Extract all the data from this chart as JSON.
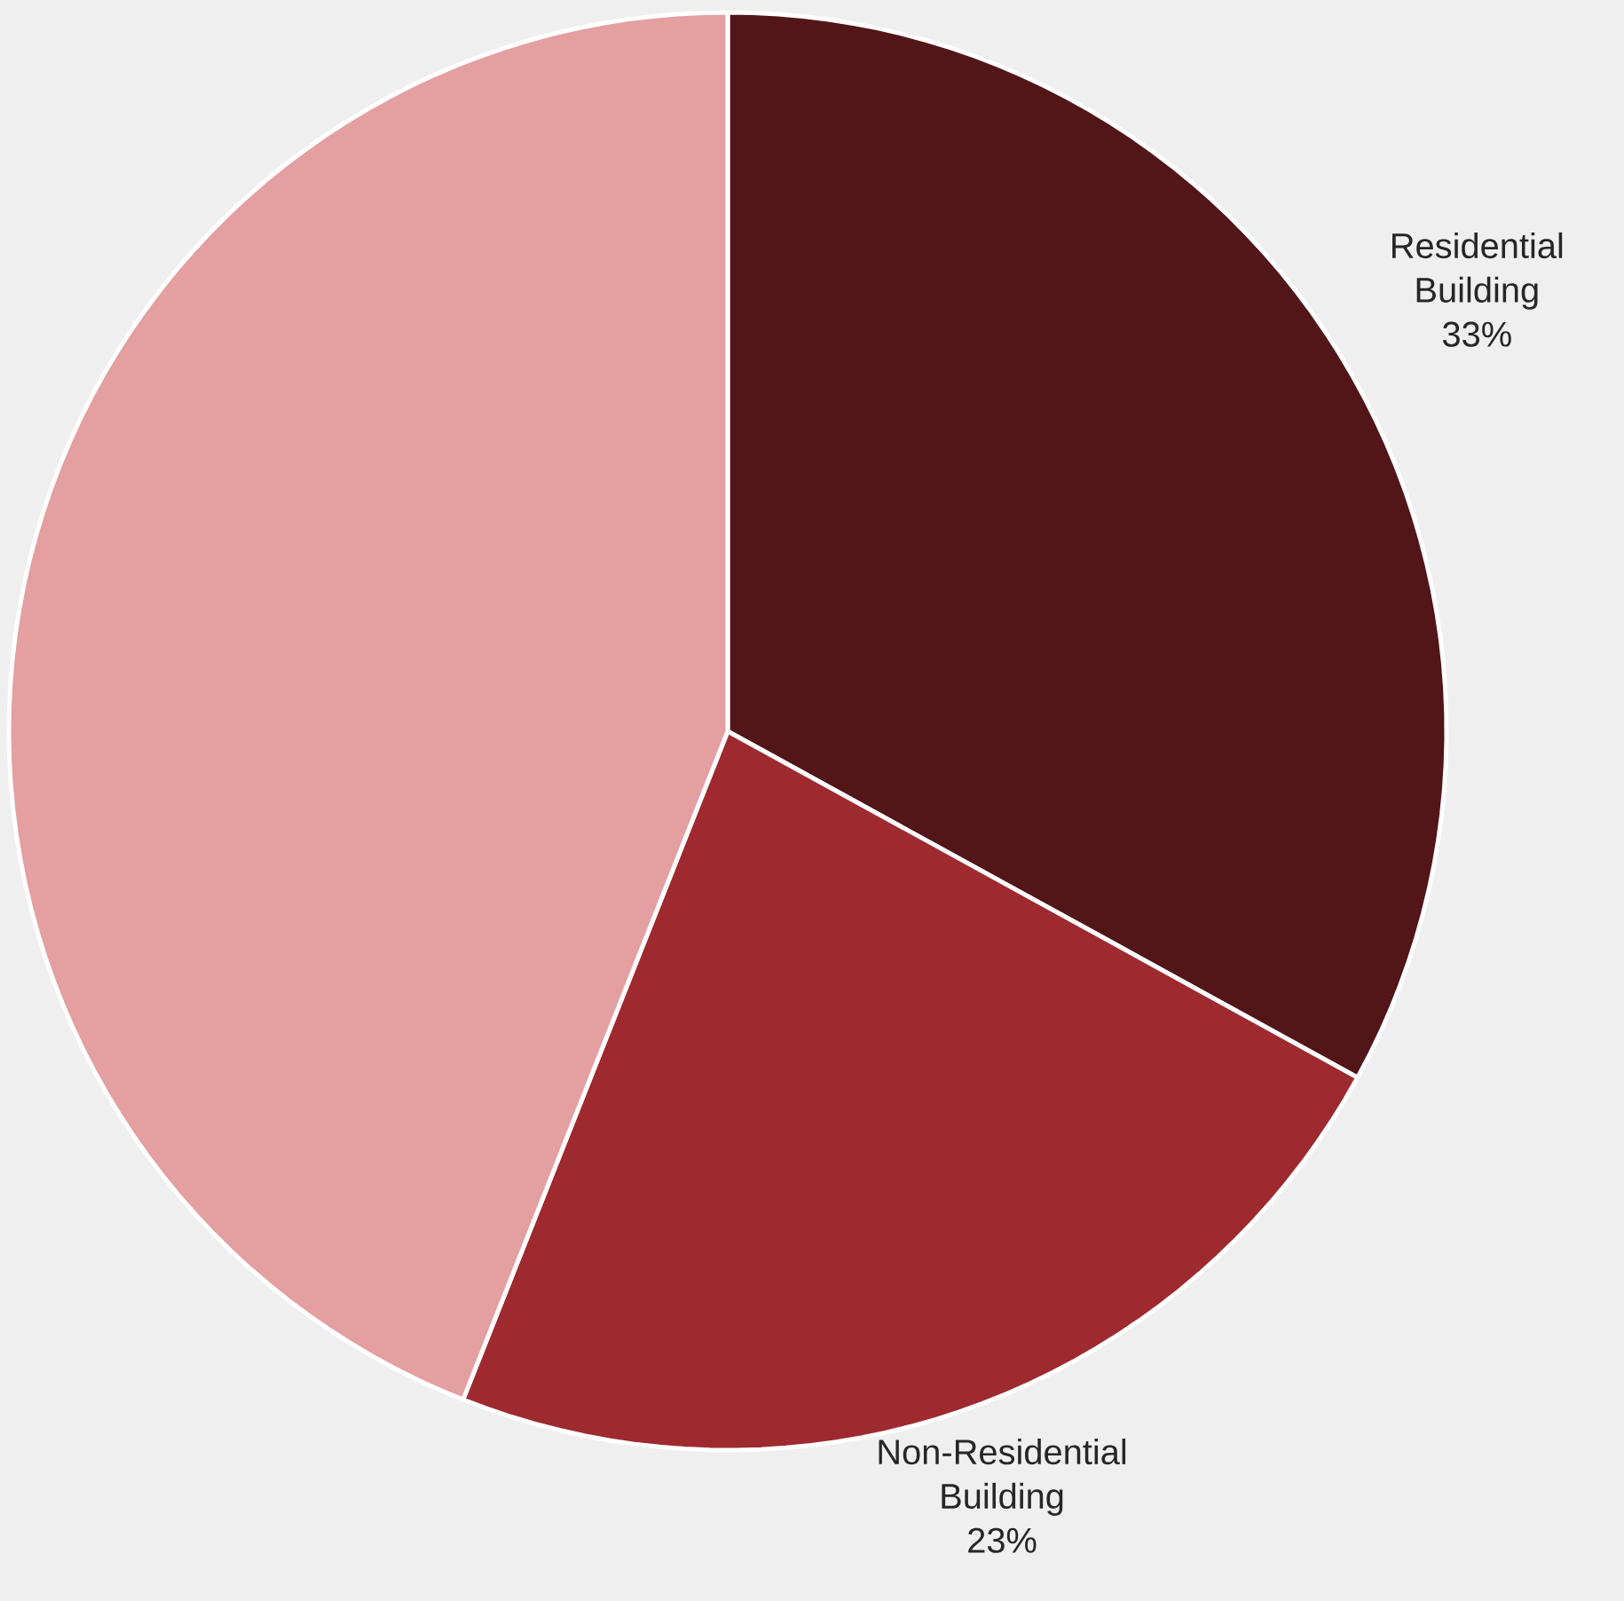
{
  "chart_data": {
    "type": "pie",
    "categories": [
      "Residential Building",
      "Non-Residential Building",
      null
    ],
    "values": [
      33,
      23,
      44
    ],
    "colors": [
      "#521518",
      "#9e2a2f",
      "#e49fa1"
    ],
    "value_labels": [
      "33%",
      "23%",
      null
    ]
  }
}
